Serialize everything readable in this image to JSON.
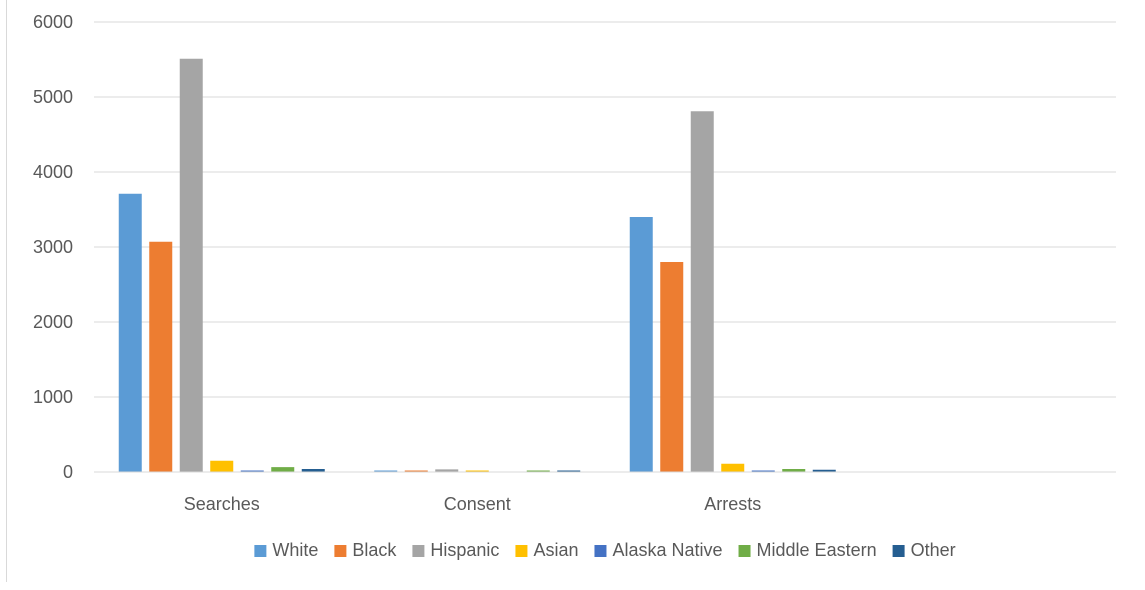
{
  "chart_data": {
    "type": "bar",
    "title": "",
    "xlabel": "",
    "ylabel": "",
    "ylim": [
      0,
      6000
    ],
    "yticks": [
      0,
      1000,
      2000,
      3000,
      4000,
      5000,
      6000
    ],
    "grid": true,
    "legend_position": "bottom",
    "categories": [
      "Searches",
      "Consent",
      "Arrests",
      ""
    ],
    "series": [
      {
        "name": "White",
        "color": "#5b9bd5",
        "values": [
          3710,
          15,
          3400,
          0
        ]
      },
      {
        "name": "Black",
        "color": "#ed7d31",
        "values": [
          3070,
          10,
          2800,
          0
        ]
      },
      {
        "name": "Hispanic",
        "color": "#a5a5a5",
        "values": [
          5510,
          35,
          4810,
          0
        ]
      },
      {
        "name": "Asian",
        "color": "#ffc000",
        "values": [
          150,
          2,
          110,
          0
        ]
      },
      {
        "name": "Alaska Native",
        "color": "#4472c4",
        "values": [
          5,
          0,
          5,
          0
        ]
      },
      {
        "name": "Middle Eastern",
        "color": "#70ad47",
        "values": [
          65,
          2,
          40,
          0
        ]
      },
      {
        "name": "Other",
        "color": "#255e91",
        "values": [
          40,
          1,
          30,
          0
        ]
      }
    ]
  }
}
